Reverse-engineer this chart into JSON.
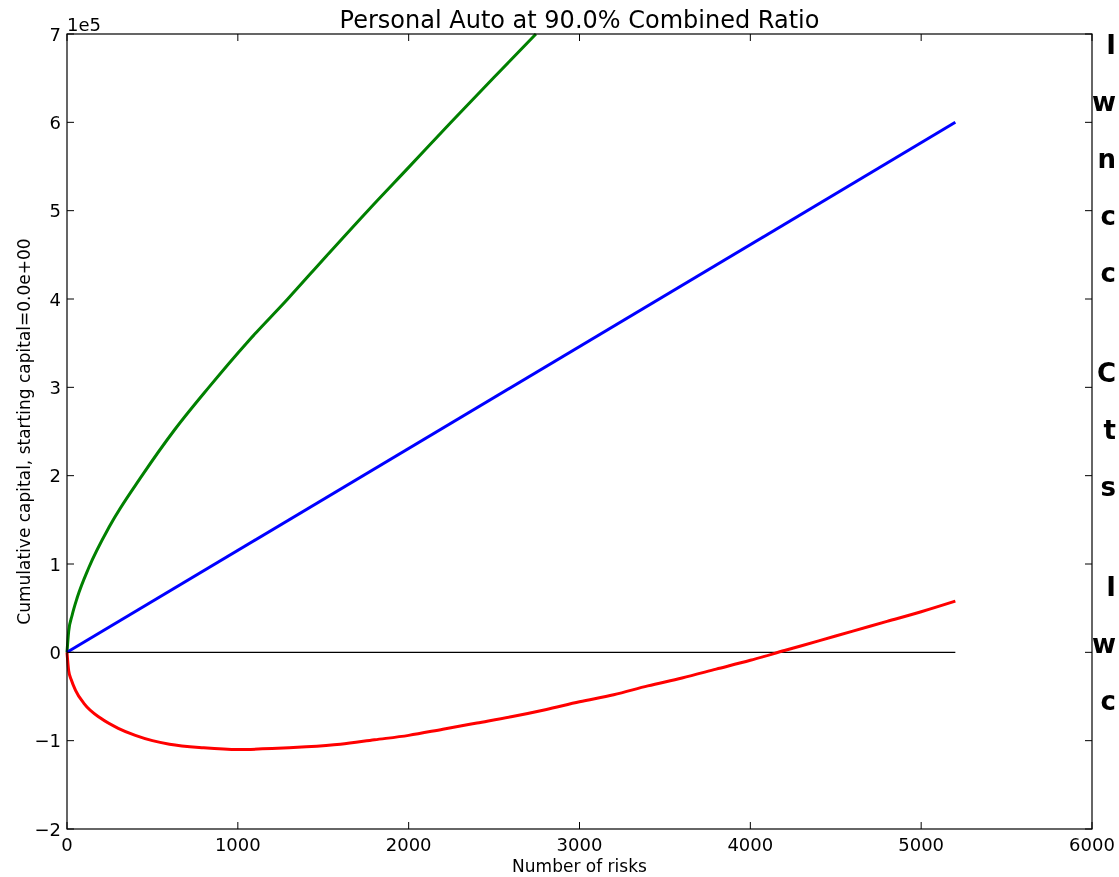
{
  "chart_data": {
    "type": "line",
    "title": "Personal Auto at 90.0% Combined Ratio",
    "xlabel": "Number of risks",
    "ylabel": "Cumulative capital, starting capital=0.0e+00",
    "xlim": [
      0,
      6000
    ],
    "xticks": [
      0,
      1000,
      2000,
      3000,
      4000,
      5000,
      6000
    ],
    "ylim": [
      -2,
      7
    ],
    "yticks": [
      {
        "value": -2,
        "label": "−2"
      },
      {
        "value": -1,
        "label": "−1"
      },
      0,
      1,
      2,
      3,
      4,
      5,
      6,
      7
    ],
    "line_style": "solid",
    "ref_lines": [
      {
        "axis": "y",
        "value": 0,
        "color": "#000000"
      }
    ],
    "annotations": [
      "1e5",
      "I\nw\nn\nc\nc",
      "C\nt\ns",
      "I\nw\nc"
    ],
    "series": [
      {
        "color": "#008000",
        "x": [
          0,
          10,
          30,
          60,
          128,
          250,
          439,
          630,
          830,
          1060,
          1292,
          1520,
          1761,
          2000,
          2248,
          2500,
          2745
        ],
        "values": [
          0,
          0.24,
          0.42,
          0.62,
          0.96,
          1.43,
          2.0,
          2.52,
          3.0,
          3.52,
          4.0,
          4.49,
          5.0,
          5.49,
          6.0,
          6.51,
          7.0
        ]
      },
      {
        "color": "#0000ff",
        "x": [
          0,
          5200
        ],
        "values": [
          0,
          6.0
        ]
      },
      {
        "color": "#ff0000",
        "x": [
          0,
          10,
          25,
          50,
          100,
          200,
          300,
          400,
          500,
          600,
          800,
          1000,
          1200,
          1400,
          1600,
          1800,
          2000,
          2200,
          2400,
          2600,
          2800,
          3000,
          3200,
          3400,
          3600,
          3800,
          4000,
          4200,
          4400,
          4600,
          4800,
          5000,
          5200
        ],
        "values": [
          0,
          -0.21,
          -0.31,
          -0.43,
          -0.58,
          -0.75,
          -0.86,
          -0.94,
          -1.0,
          -1.04,
          -1.08,
          -1.1,
          -1.09,
          -1.07,
          -1.04,
          -0.99,
          -0.94,
          -0.87,
          -0.8,
          -0.73,
          -0.65,
          -0.56,
          -0.48,
          -0.38,
          -0.29,
          -0.19,
          -0.09,
          0.02,
          0.13,
          0.24,
          0.35,
          0.46,
          0.58
        ]
      }
    ]
  }
}
